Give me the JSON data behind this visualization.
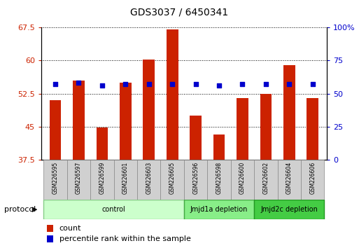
{
  "title": "GDS3037 / 6450341",
  "samples": [
    "GSM226595",
    "GSM226597",
    "GSM226599",
    "GSM226601",
    "GSM226603",
    "GSM226605",
    "GSM226596",
    "GSM226598",
    "GSM226600",
    "GSM226602",
    "GSM226604",
    "GSM226606"
  ],
  "counts": [
    51.0,
    55.5,
    44.8,
    55.0,
    60.2,
    67.0,
    47.5,
    43.2,
    51.5,
    52.5,
    59.0,
    51.5
  ],
  "percentile_ranks": [
    57,
    58,
    56,
    57,
    57,
    57,
    57,
    56,
    57,
    57,
    57,
    57
  ],
  "ylim_left": [
    37.5,
    67.5
  ],
  "ylim_right": [
    0,
    100
  ],
  "yticks_left": [
    37.5,
    45.0,
    52.5,
    60.0,
    67.5
  ],
  "ytick_labels_left": [
    "37.5",
    "45",
    "52.5",
    "60",
    "67.5"
  ],
  "yticks_right": [
    0,
    25,
    50,
    75,
    100
  ],
  "ytick_labels_right": [
    "0",
    "25",
    "50",
    "75",
    "100%"
  ],
  "bar_color": "#cc2200",
  "square_color": "#0000cc",
  "groups": [
    {
      "label": "control",
      "start": 0,
      "end": 6,
      "color": "#ccffcc",
      "border": "#88cc88"
    },
    {
      "label": "Jmjd1a depletion",
      "start": 6,
      "end": 9,
      "color": "#88ee88",
      "border": "#44aa44"
    },
    {
      "label": "Jmjd2c depletion",
      "start": 9,
      "end": 12,
      "color": "#44cc44",
      "border": "#229922"
    }
  ],
  "bg_color": "#ffffff",
  "protocol_label": "protocol",
  "legend_count_label": "count",
  "legend_pct_label": "percentile rank within the sample",
  "bar_color_legend": "#cc2200",
  "square_color_legend": "#0000cc"
}
